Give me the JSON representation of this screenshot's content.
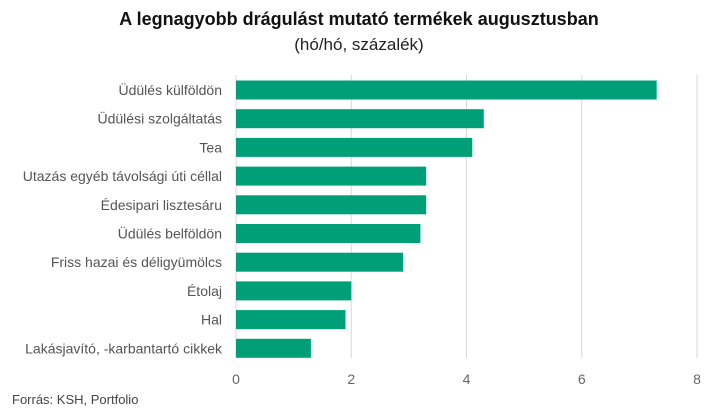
{
  "chart_data": {
    "type": "bar",
    "orientation": "horizontal",
    "title": "A legnagyobb drágulást mutató termékek augusztusban",
    "subtitle": "(hó/hó, százalék)",
    "categories": [
      "Üdülés külföldön",
      "Üdülési szolgáltatás",
      "Tea",
      "Utazás egyéb távolsági úti céllal",
      "Édesipari lisztesáru",
      "Üdülés belföldön",
      "Friss hazai és déligyümölcs",
      "Étolaj",
      "Hal",
      "Lakásjavító, -karbantartó cikkek"
    ],
    "values": [
      7.3,
      4.3,
      4.1,
      3.3,
      3.3,
      3.2,
      2.9,
      2.0,
      1.9,
      1.3
    ],
    "xlim": [
      0,
      8
    ],
    "xticks": [
      0,
      2,
      4,
      6,
      8
    ],
    "xlabel": "",
    "ylabel": "",
    "grid": true,
    "bar_color": "#009f78",
    "grid_color": "#d9d9d9"
  },
  "source": "Forrás: KSH, Portfolio"
}
